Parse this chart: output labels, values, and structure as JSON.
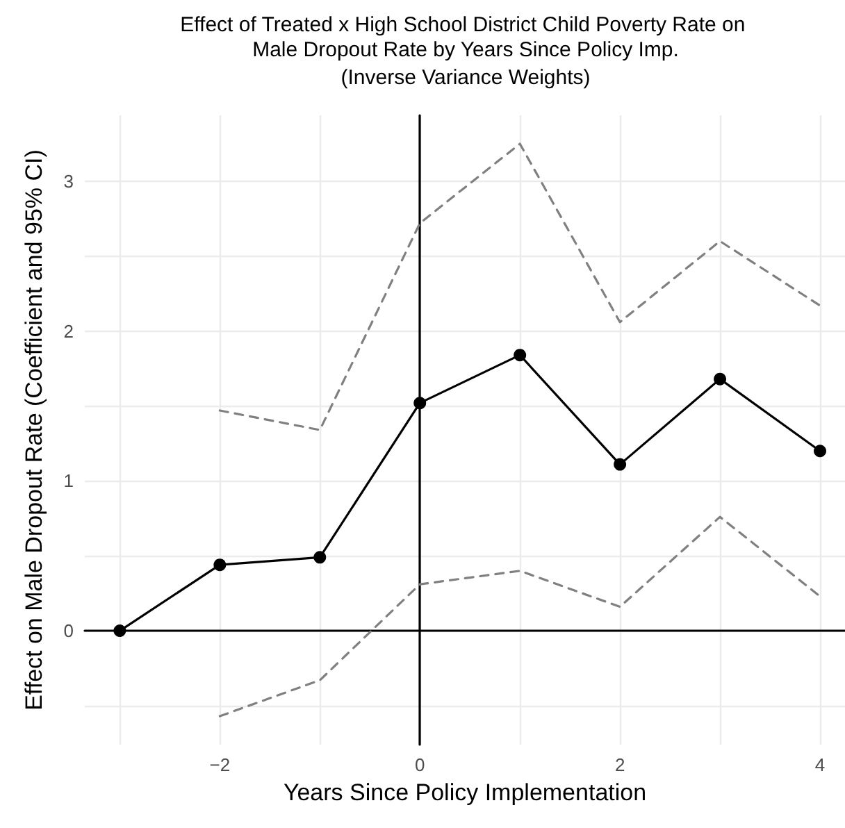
{
  "chart_data": {
    "type": "line",
    "title": "Effect of Treated x High School District Child Poverty Rate on Male Dropout Rate by Years Since Policy Imp.",
    "subtitle": "(Inverse Variance Weights)",
    "xlabel": "Years Since Policy Implementation",
    "ylabel": "Effect on Male Dropout Rate (Coefficient and 95% CI)",
    "series": [
      {
        "color": "#000000",
        "marker": "circle",
        "line_style": "solid",
        "x": [
          -3,
          -2,
          -1,
          0,
          1,
          2,
          3,
          4
        ],
        "values": [
          0,
          0.44,
          0.49,
          1.52,
          1.84,
          1.11,
          1.68,
          1.2
        ]
      },
      {
        "color": "#808080",
        "marker": "none",
        "line_style": "dashed",
        "x": [
          -2,
          -1,
          0,
          1,
          2,
          3,
          4
        ],
        "values": [
          1.47,
          1.34,
          2.72,
          3.25,
          2.06,
          2.6,
          2.17
        ]
      },
      {
        "color": "#808080",
        "marker": "none",
        "line_style": "dashed",
        "x": [
          -2,
          -1,
          0,
          1,
          2,
          3,
          4
        ],
        "values": [
          -0.57,
          -0.33,
          0.31,
          0.4,
          0.16,
          0.76,
          0.23
        ]
      }
    ],
    "xlim": [
      -3.35,
      4.25
    ],
    "xticks": [
      {
        "value": -3,
        "label": null
      },
      -2,
      {
        "value": -1,
        "label": null
      },
      0,
      {
        "value": 1,
        "label": null
      },
      2,
      {
        "value": 3,
        "label": null
      },
      4
    ],
    "ylim": [
      -0.76,
      3.44
    ],
    "yticks": [
      {
        "value": -0.5,
        "label": null
      },
      0,
      {
        "value": 0.5,
        "label": null
      },
      1,
      {
        "value": 1.5,
        "label": null
      },
      2,
      {
        "value": 2.5,
        "label": null
      },
      3
    ],
    "grid": true
  }
}
